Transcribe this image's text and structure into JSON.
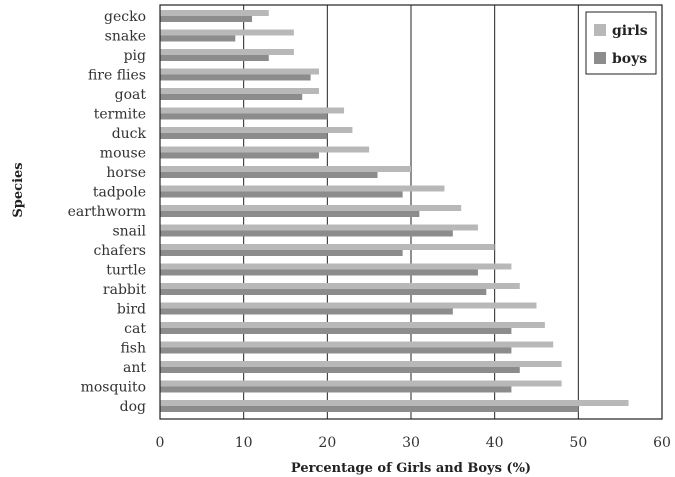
{
  "chart_data": {
    "type": "bar",
    "orientation": "horizontal",
    "categories": [
      "gecko",
      "snake",
      "pig",
      "fire flies",
      "goat",
      "termite",
      "duck",
      "mouse",
      "horse",
      "tadpole",
      "earthworm",
      "snail",
      "chafers",
      "turtle",
      "rabbit",
      "bird",
      "cat",
      "fish",
      "ant",
      "mosquito",
      "dog"
    ],
    "series": [
      {
        "name": "girls",
        "color": "#b8b8b8",
        "values": [
          13,
          16,
          16,
          19,
          19,
          22,
          23,
          25,
          30,
          34,
          36,
          38,
          40,
          42,
          43,
          45,
          46,
          47,
          48,
          48,
          56
        ]
      },
      {
        "name": "boys",
        "color": "#8c8c8c",
        "values": [
          11,
          9,
          13,
          18,
          17,
          20,
          20,
          19,
          26,
          29,
          31,
          35,
          29,
          38,
          39,
          35,
          42,
          42,
          43,
          42,
          50
        ]
      }
    ],
    "xlabel": "Percentage of Girls and Boys (%)",
    "ylabel": "Species",
    "xlim": [
      0,
      60
    ],
    "xticks": [
      0,
      10,
      20,
      30,
      40,
      50,
      60
    ],
    "grid": "vertical",
    "legend_position": "top-right"
  }
}
